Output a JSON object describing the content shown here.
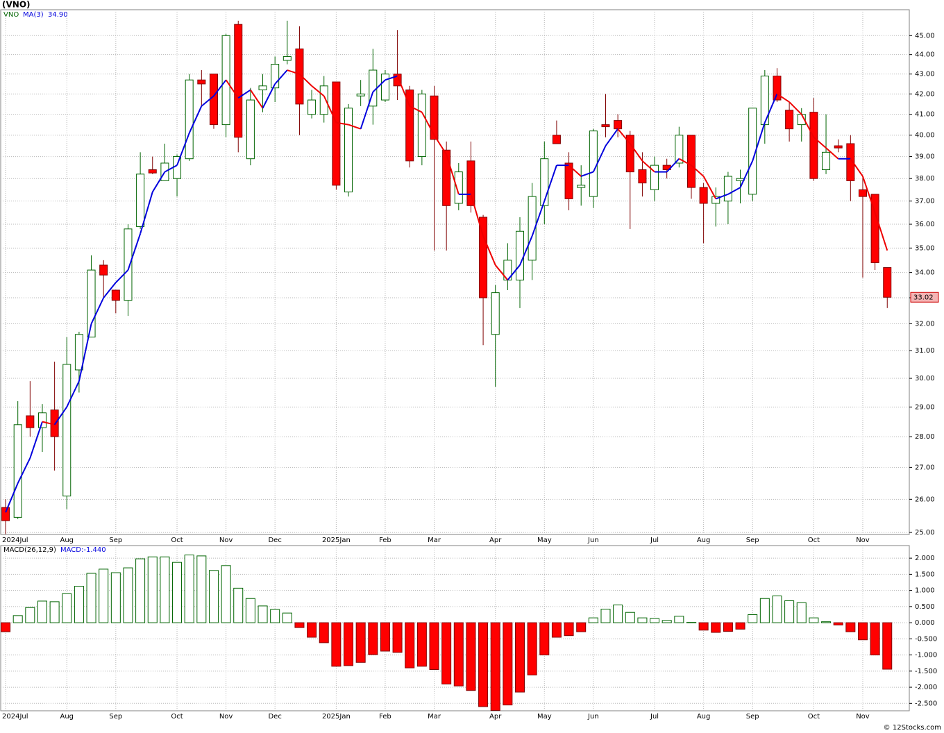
{
  "header": {
    "title": "(VNO)"
  },
  "footer": "© 12Stocks.com",
  "chart_data": [
    {
      "type": "candlestick",
      "symbol": "VNO",
      "log_scale": true,
      "grid": true,
      "up_color": "#006400",
      "down_color": "#ff0000",
      "down_wick_color": "#800000",
      "last_price_color": "#f4b4b4",
      "xlim": [
        -0.4,
        73.8
      ],
      "xticks": [
        {
          "value": 0,
          "label": "2024Jul"
        },
        {
          "value": 5,
          "label": "Aug"
        },
        {
          "value": 9,
          "label": "Sep"
        },
        {
          "value": 14,
          "label": "Oct"
        },
        {
          "value": 18,
          "label": "Nov"
        },
        {
          "value": 22,
          "label": "Dec"
        },
        {
          "value": 27,
          "label": "2025Jan"
        },
        {
          "value": 31,
          "label": "Feb"
        },
        {
          "value": 35,
          "label": "Mar"
        },
        {
          "value": 40,
          "label": "Apr"
        },
        {
          "value": 44,
          "label": "May"
        },
        {
          "value": 48,
          "label": "Jun"
        },
        {
          "value": 53,
          "label": "Jul"
        },
        {
          "value": 57,
          "label": "Aug"
        },
        {
          "value": 61,
          "label": "Sep"
        },
        {
          "value": 66,
          "label": "Oct"
        },
        {
          "value": 70,
          "label": "Nov"
        }
      ],
      "ylim": [
        24.94,
        46.4
      ],
      "yticks": [
        {
          "value": 25,
          "label": "25.00"
        },
        {
          "value": 26,
          "label": "26.00"
        },
        {
          "value": 27,
          "label": "27.00"
        },
        {
          "value": 28,
          "label": "28.00"
        },
        {
          "value": 29,
          "label": "29.00"
        },
        {
          "value": 30,
          "label": "30.00"
        },
        {
          "value": 31,
          "label": "31.00"
        },
        {
          "value": 32,
          "label": "32.00"
        },
        {
          "value": 33,
          "label": "33.00"
        },
        {
          "value": 34,
          "label": "34.00"
        },
        {
          "value": 35,
          "label": "35.00"
        },
        {
          "value": 36,
          "label": "36.00"
        },
        {
          "value": 37,
          "label": "37.00"
        },
        {
          "value": 38,
          "label": "38.00"
        },
        {
          "value": 39,
          "label": "39.00"
        },
        {
          "value": 40,
          "label": "40.00"
        },
        {
          "value": 41,
          "label": "41.00"
        },
        {
          "value": 42,
          "label": "42.00"
        },
        {
          "value": 43,
          "label": "43.00"
        },
        {
          "value": 44,
          "label": "44.00"
        },
        {
          "value": 45,
          "label": "45.00"
        }
      ],
      "ohlc": {
        "open": [
          25.75,
          25.45,
          28.7,
          28.3,
          28.9,
          26.1,
          30.3,
          31.5,
          34.3,
          33.3,
          32.9,
          35.9,
          38.4,
          37.9,
          38.0,
          38.9,
          42.7,
          43.0,
          40.5,
          45.6,
          38.9,
          42.2,
          42.3,
          43.7,
          44.3,
          41.0,
          41.0,
          42.6,
          37.4,
          41.9,
          41.4,
          41.7,
          43.0,
          42.2,
          39.0,
          41.9,
          39.3,
          36.9,
          38.8,
          36.3,
          31.6,
          33.7,
          33.7,
          34.5,
          36.8,
          40.0,
          38.7,
          37.6,
          37.2,
          40.5,
          40.7,
          40.0,
          38.4,
          37.5,
          38.6,
          38.7,
          40.0,
          37.6,
          36.9,
          37.0,
          37.9,
          37.3,
          40.5,
          42.9,
          41.2,
          40.5,
          41.1,
          38.4,
          39.5,
          39.6,
          37.5,
          37.3,
          34.2
        ],
        "high": [
          26.0,
          29.2,
          29.9,
          29.1,
          30.6,
          31.5,
          31.7,
          34.7,
          34.5,
          33.3,
          36.0,
          39.2,
          39.0,
          39.6,
          39.1,
          43.0,
          43.2,
          43.0,
          45.1,
          45.8,
          42.3,
          43.0,
          43.9,
          45.8,
          45.5,
          42.2,
          42.9,
          42.6,
          41.5,
          42.7,
          44.3,
          43.2,
          45.3,
          42.4,
          42.2,
          42.4,
          39.7,
          38.7,
          39.7,
          36.4,
          33.5,
          35.2,
          36.3,
          37.8,
          39.7,
          40.7,
          39.2,
          38.6,
          40.3,
          42.0,
          41.0,
          40.2,
          39.2,
          39.0,
          38.9,
          40.4,
          40.0,
          37.8,
          37.6,
          38.3,
          38.4,
          41.3,
          43.2,
          43.3,
          41.6,
          41.3,
          41.8,
          41.0,
          39.8,
          40.0,
          38.1,
          37.3,
          34.2
        ],
        "low": [
          24.95,
          25.4,
          28.0,
          27.5,
          26.9,
          25.7,
          29.5,
          31.5,
          33.0,
          32.4,
          32.3,
          35.8,
          38.2,
          37.9,
          37.2,
          38.8,
          41.4,
          40.3,
          39.9,
          39.2,
          38.6,
          41.1,
          41.6,
          43.5,
          40.0,
          40.8,
          40.6,
          37.5,
          37.2,
          41.4,
          40.5,
          41.6,
          41.7,
          38.5,
          38.6,
          34.9,
          34.9,
          36.6,
          36.5,
          31.2,
          29.7,
          33.3,
          32.6,
          33.7,
          36.0,
          39.6,
          36.6,
          36.8,
          36.7,
          39.9,
          39.9,
          35.8,
          37.2,
          37.0,
          38.0,
          38.5,
          37.1,
          35.2,
          35.9,
          36.0,
          36.9,
          37.0,
          39.6,
          41.6,
          39.7,
          39.7,
          37.9,
          38.2,
          39.2,
          37.0,
          33.8,
          34.1,
          32.6
        ],
        "close": [
          25.35,
          28.4,
          28.3,
          28.8,
          28.0,
          30.5,
          31.6,
          34.1,
          33.9,
          32.9,
          35.8,
          38.2,
          38.25,
          38.7,
          39.0,
          42.7,
          42.5,
          40.5,
          45.0,
          39.9,
          41.7,
          42.4,
          43.5,
          43.9,
          41.5,
          41.7,
          42.4,
          37.7,
          41.3,
          42.0,
          43.2,
          43.0,
          42.4,
          38.8,
          42.0,
          39.8,
          36.8,
          38.3,
          36.8,
          33.0,
          33.2,
          34.5,
          35.7,
          37.2,
          38.9,
          39.6,
          37.1,
          37.7,
          40.2,
          40.4,
          40.3,
          38.3,
          37.8,
          38.6,
          38.4,
          40.0,
          37.6,
          36.9,
          37.2,
          38.1,
          38.0,
          41.3,
          42.9,
          41.7,
          40.3,
          41.0,
          38.0,
          39.2,
          39.4,
          37.9,
          37.2,
          34.4,
          33.02
        ]
      },
      "series": [
        {
          "name": "MA(3)",
          "color": "#0000dd",
          "down_color": "#ee0000",
          "value_label": "34.90",
          "values": [
            25.6,
            26.5,
            27.3,
            28.5,
            28.4,
            29.0,
            29.9,
            32.0,
            33.0,
            33.6,
            34.1,
            35.6,
            37.4,
            38.3,
            38.6,
            40.1,
            41.4,
            41.9,
            42.7,
            41.8,
            42.2,
            41.3,
            42.5,
            43.2,
            43.0,
            42.4,
            41.9,
            40.6,
            40.5,
            40.3,
            42.1,
            42.7,
            42.9,
            41.4,
            41.1,
            40.0,
            39.1,
            37.3,
            37.3,
            35.5,
            34.3,
            33.7,
            34.3,
            35.5,
            37.0,
            38.6,
            38.6,
            38.1,
            38.3,
            39.5,
            40.3,
            39.6,
            38.8,
            38.3,
            38.3,
            38.9,
            38.6,
            38.1,
            37.1,
            37.3,
            37.6,
            38.8,
            40.6,
            42.0,
            41.6,
            41.0,
            39.9,
            39.4,
            38.9,
            38.9,
            38.1,
            36.5,
            34.9
          ]
        }
      ]
    },
    {
      "type": "histogram",
      "title": "MACD(26,12,9)",
      "grid": true,
      "up_color": "#006400",
      "down_color": "#ff0000",
      "ylim": [
        -2.73,
        2.39
      ],
      "yticks": [
        {
          "value": 2,
          "label": "2.000"
        },
        {
          "value": 1.5,
          "label": "1.500"
        },
        {
          "value": 1,
          "label": "1.000"
        },
        {
          "value": 0.5,
          "label": "0.500"
        },
        {
          "value": 0,
          "label": "0.000"
        },
        {
          "value": -0.5,
          "label": "-0.500"
        },
        {
          "value": -1,
          "label": "-1.000"
        },
        {
          "value": -1.5,
          "label": "-1.500"
        },
        {
          "value": -2,
          "label": "-2.000"
        },
        {
          "value": -2.5,
          "label": "-2.500"
        }
      ],
      "series": [
        {
          "name": "MACD:-1.440",
          "color": "#0000dd",
          "values": [
            -0.28,
            0.22,
            0.47,
            0.67,
            0.65,
            0.9,
            1.13,
            1.53,
            1.66,
            1.55,
            1.7,
            1.98,
            2.04,
            2.04,
            1.87,
            2.1,
            2.07,
            1.62,
            1.77,
            1.07,
            0.75,
            0.52,
            0.41,
            0.3,
            -0.15,
            -0.45,
            -0.62,
            -1.35,
            -1.33,
            -1.23,
            -0.99,
            -0.88,
            -0.92,
            -1.4,
            -1.35,
            -1.45,
            -1.9,
            -1.96,
            -2.1,
            -2.6,
            -2.72,
            -2.55,
            -2.15,
            -1.62,
            -1.0,
            -0.45,
            -0.4,
            -0.28,
            0.15,
            0.42,
            0.55,
            0.32,
            0.15,
            0.13,
            0.07,
            0.2,
            0.01,
            -0.23,
            -0.3,
            -0.27,
            -0.2,
            0.25,
            0.75,
            0.83,
            0.68,
            0.62,
            0.15,
            0.03,
            -0.07,
            -0.28,
            -0.53,
            -1.0,
            -1.44
          ]
        }
      ]
    }
  ]
}
